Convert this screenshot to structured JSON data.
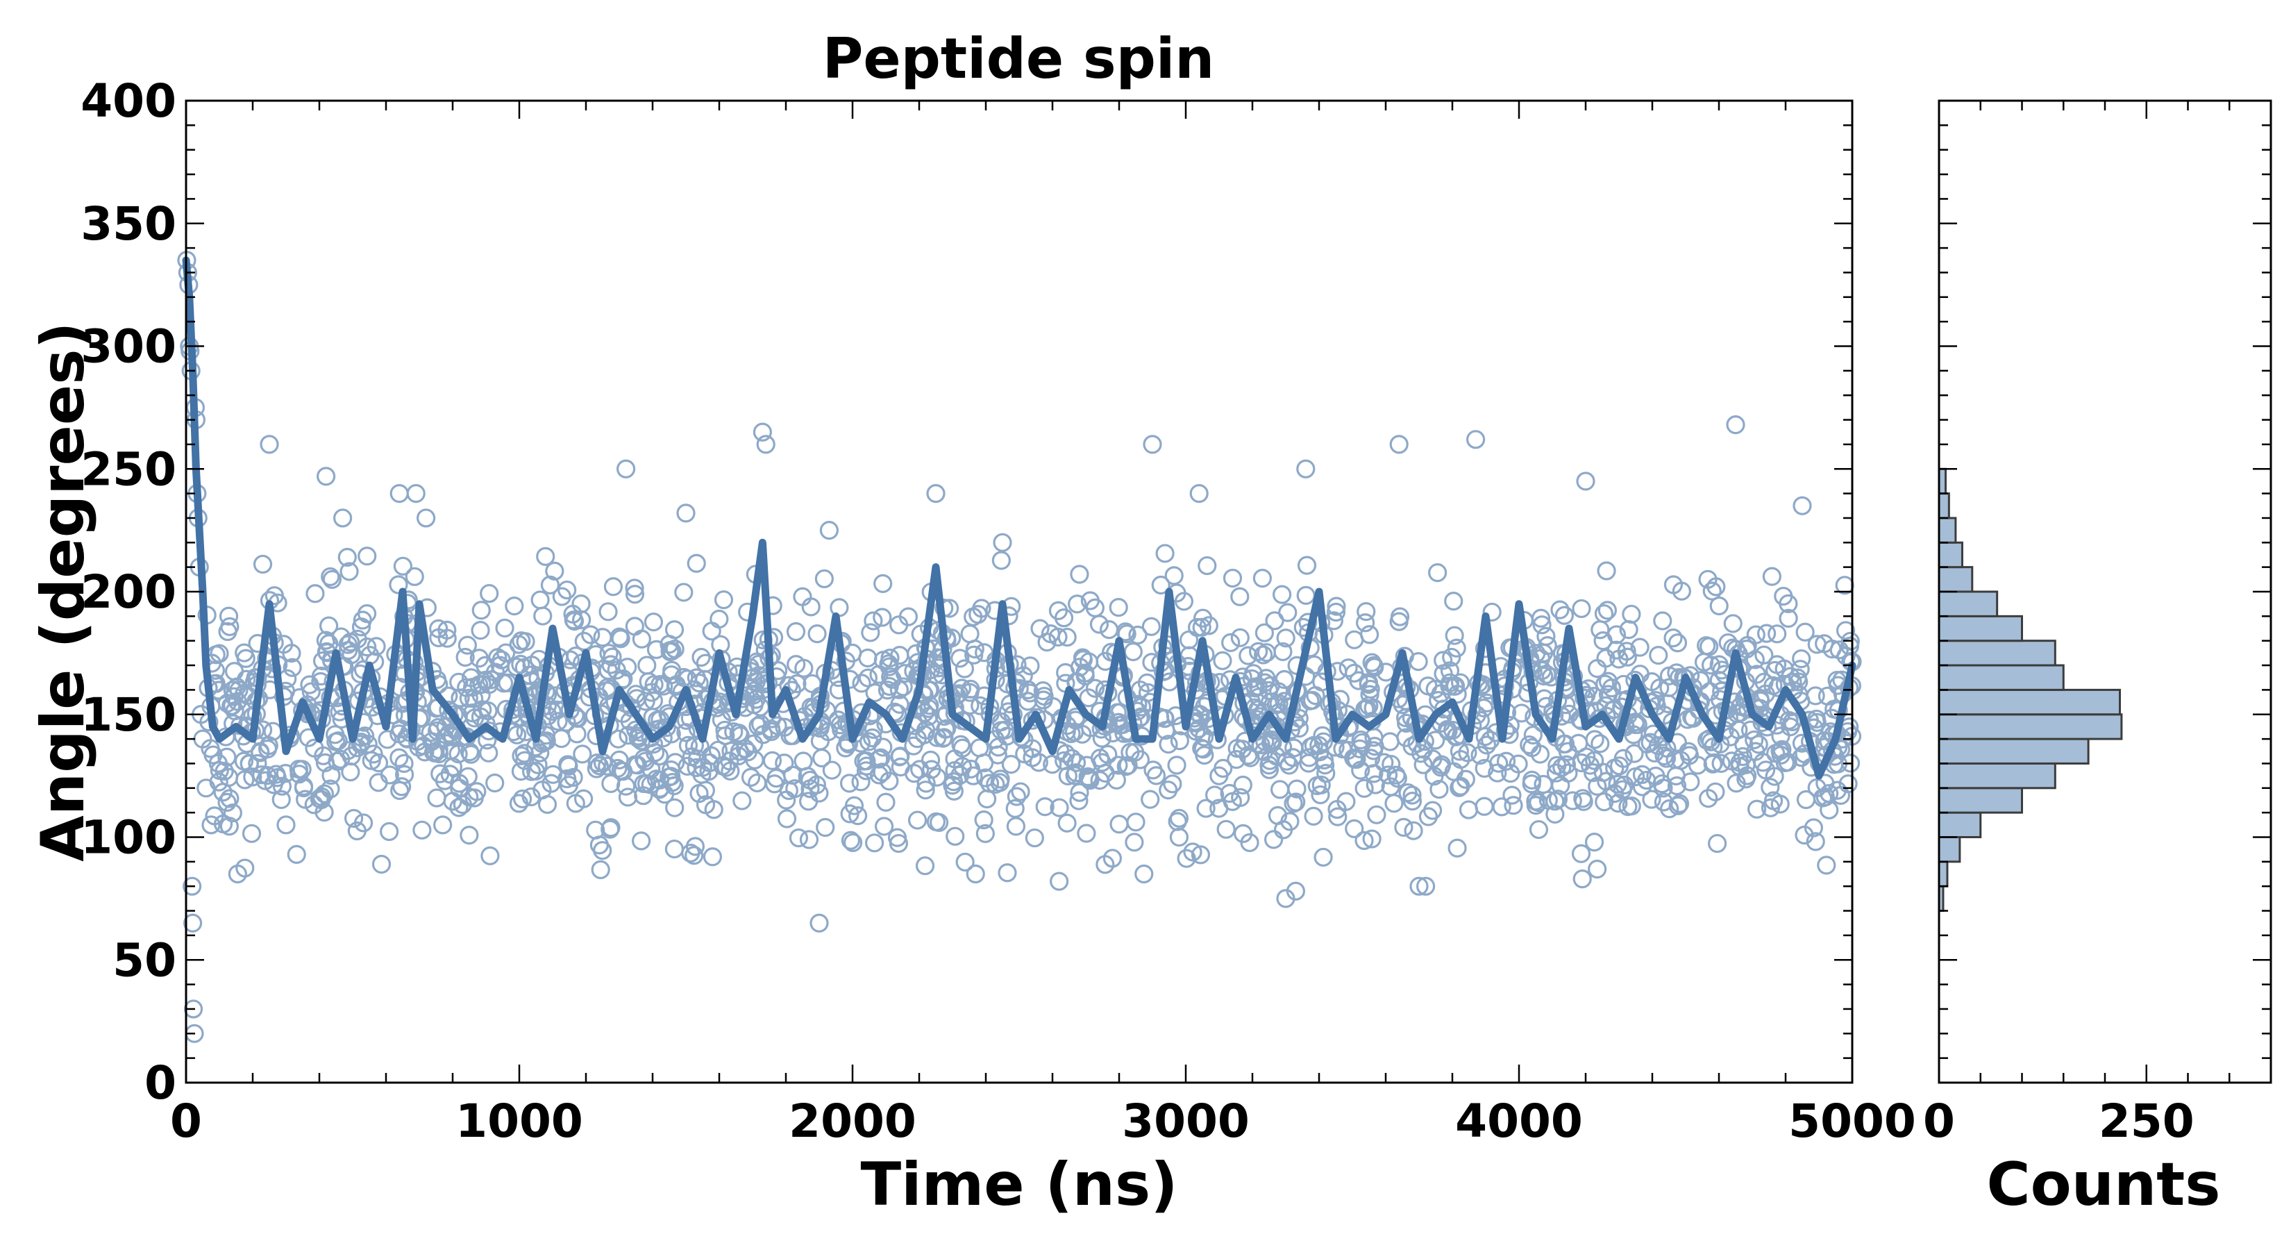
{
  "chart_data": [
    {
      "type": "scatter",
      "title": "Peptide spin",
      "xlabel": "Time (ns)",
      "ylabel": "Angle (degrees)",
      "xlim": [
        0,
        5000
      ],
      "ylim": [
        0,
        400
      ],
      "xticks": [
        0,
        1000,
        2000,
        3000,
        4000,
        5000
      ],
      "yticks": [
        0,
        50,
        100,
        150,
        200,
        250,
        300,
        350,
        400
      ],
      "grid": false,
      "colors": {
        "points": "#8ea9c8",
        "line": "#4272a6"
      },
      "raw_series": {
        "style": "open circles",
        "x": [
          2,
          5,
          8,
          10,
          12,
          15,
          18,
          20,
          22,
          25,
          28,
          30,
          33,
          36,
          40,
          45,
          50,
          60,
          75,
          250,
          300,
          420,
          470,
          640,
          690,
          720,
          1320,
          1500,
          1730,
          1740,
          1900,
          1930,
          2250,
          2450,
          2900,
          3040,
          3360,
          3640,
          3870,
          4200,
          4650,
          4850,
          3300,
          3330,
          3720,
          3700,
          4190,
          2620,
          1580,
          2980
        ],
        "y": [
          335,
          330,
          325,
          300,
          298,
          290,
          80,
          65,
          30,
          20,
          275,
          270,
          240,
          230,
          210,
          150,
          140,
          120,
          105,
          260,
          105,
          247,
          230,
          240,
          240,
          230,
          250,
          232,
          265,
          260,
          65,
          225,
          240,
          220,
          260,
          240,
          250,
          260,
          262,
          245,
          268,
          235,
          75,
          78,
          80,
          80,
          83,
          82,
          92,
          100
        ]
      },
      "smoothed_series": {
        "style": "thick line",
        "x": [
          0,
          10,
          20,
          30,
          40,
          50,
          60,
          80,
          100,
          150,
          200,
          250,
          300,
          350,
          400,
          450,
          500,
          550,
          600,
          650,
          680,
          700,
          740,
          800,
          850,
          900,
          950,
          1000,
          1050,
          1100,
          1150,
          1200,
          1250,
          1300,
          1350,
          1400,
          1450,
          1500,
          1550,
          1600,
          1650,
          1700,
          1730,
          1760,
          1800,
          1850,
          1900,
          1950,
          2000,
          2050,
          2100,
          2150,
          2200,
          2250,
          2300,
          2350,
          2400,
          2450,
          2500,
          2550,
          2600,
          2650,
          2700,
          2750,
          2800,
          2850,
          2900,
          2950,
          3000,
          3050,
          3100,
          3150,
          3200,
          3250,
          3300,
          3350,
          3400,
          3450,
          3500,
          3550,
          3600,
          3650,
          3700,
          3750,
          3800,
          3850,
          3900,
          3950,
          4000,
          4050,
          4100,
          4150,
          4200,
          4250,
          4300,
          4350,
          4400,
          4450,
          4500,
          4550,
          4600,
          4650,
          4700,
          4750,
          4800,
          4850,
          4900,
          4950,
          5000
        ],
        "y": [
          335,
          320,
          290,
          250,
          225,
          200,
          170,
          145,
          140,
          145,
          140,
          195,
          135,
          155,
          140,
          175,
          140,
          170,
          145,
          200,
          140,
          195,
          160,
          150,
          140,
          145,
          140,
          165,
          140,
          185,
          150,
          175,
          135,
          160,
          150,
          140,
          145,
          160,
          140,
          175,
          150,
          190,
          220,
          150,
          160,
          140,
          150,
          190,
          140,
          155,
          150,
          140,
          160,
          210,
          150,
          145,
          140,
          195,
          140,
          150,
          135,
          160,
          150,
          145,
          180,
          140,
          140,
          200,
          145,
          180,
          140,
          165,
          140,
          150,
          140,
          170,
          200,
          140,
          150,
          145,
          150,
          175,
          140,
          150,
          155,
          140,
          190,
          140,
          195,
          150,
          140,
          185,
          145,
          150,
          140,
          165,
          150,
          140,
          165,
          150,
          140,
          175,
          150,
          145,
          160,
          150,
          125,
          140,
          170
        ]
      }
    },
    {
      "type": "bar",
      "orientation": "horizontal",
      "xlabel": "Counts",
      "xlim": [
        0,
        400
      ],
      "xticks": [
        0,
        250
      ],
      "ylim": [
        0,
        400
      ],
      "bin_width": 10,
      "bin_starts": [
        70,
        80,
        90,
        100,
        110,
        120,
        130,
        140,
        150,
        160,
        170,
        180,
        190,
        200,
        210,
        220,
        230,
        240
      ],
      "values": [
        5,
        10,
        25,
        50,
        100,
        140,
        180,
        220,
        218,
        150,
        140,
        100,
        70,
        40,
        28,
        20,
        12,
        8
      ],
      "colors": {
        "bars": "#a5bdd6",
        "edge": "#3c3c3c"
      }
    }
  ]
}
